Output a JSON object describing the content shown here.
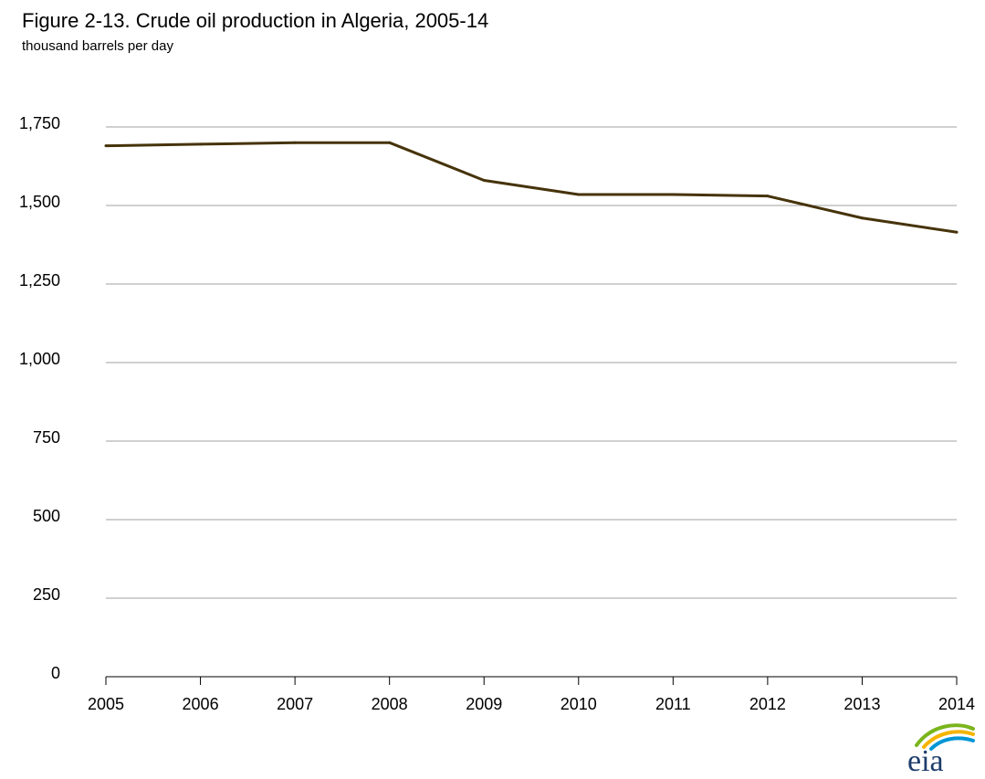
{
  "title": "Figure 2-13. Crude oil production in Algeria, 2005-14",
  "subtitle": "thousand barrels per day",
  "logo": {
    "text": "eia"
  },
  "colors": {
    "series": "#46330a",
    "grid": "#a0a0a0",
    "axis": "#000000"
  },
  "chart_data": {
    "type": "line",
    "title": "Figure 2-13. Crude oil production in Algeria, 2005-14",
    "ylabel": "thousand barrels per day",
    "xlabel": "",
    "x": [
      2005,
      2006,
      2007,
      2008,
      2009,
      2010,
      2011,
      2012,
      2013,
      2014
    ],
    "series": [
      {
        "values": [
          1690,
          1695,
          1700,
          1700,
          1580,
          1535,
          1535,
          1530,
          1460,
          1415
        ]
      }
    ],
    "ylim": [
      0,
      1750
    ],
    "yticks": [
      0,
      250,
      500,
      750,
      1000,
      1250,
      1500,
      1750
    ],
    "ytick_labels": [
      "0",
      "250",
      "500",
      "750",
      "1,000",
      "1,250",
      "1,500",
      "1,750"
    ],
    "xtick_labels": [
      "2005",
      "2006",
      "2007",
      "2008",
      "2009",
      "2010",
      "2011",
      "2012",
      "2013",
      "2014"
    ],
    "grid": true,
    "legend": "none"
  }
}
